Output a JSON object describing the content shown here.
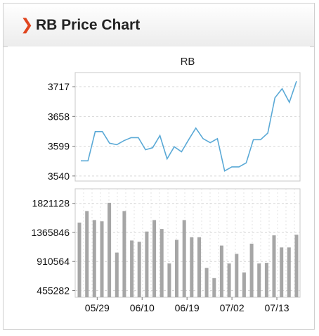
{
  "panel": {
    "title": "RB Price Chart",
    "chevron_color": "#e0451f"
  },
  "chart_data": [
    {
      "type": "line",
      "title": "RB",
      "xlabel": "",
      "ylabel": "",
      "yticks": [
        3540,
        3599,
        3658,
        3717
      ],
      "ylim": [
        3530,
        3745
      ],
      "grid": true,
      "color": "#5aa9d6",
      "values": [
        3570,
        3570,
        3628,
        3628,
        3605,
        3602,
        3610,
        3616,
        3616,
        3592,
        3596,
        3620,
        3574,
        3598,
        3588,
        3612,
        3635,
        3614,
        3606,
        3614,
        3550,
        3558,
        3558,
        3566,
        3612,
        3612,
        3625,
        3695,
        3713,
        3686,
        3728
      ]
    },
    {
      "type": "bar",
      "title": "",
      "xlabel": "",
      "ylabel": "",
      "yticks": [
        455282,
        910564,
        1365846,
        1821128
      ],
      "ylim": [
        350000,
        2050000
      ],
      "grid": true,
      "color": "#a6a6a6",
      "x_tick_labels": [
        "05/29",
        "06/10",
        "06/19",
        "07/02",
        "07/13"
      ],
      "x_tick_positions": [
        2,
        8,
        14,
        20,
        26
      ],
      "values": [
        1520000,
        1700000,
        1560000,
        1540000,
        1830000,
        1050000,
        1700000,
        1240000,
        1220000,
        1380000,
        1560000,
        1420000,
        880000,
        1250000,
        1560000,
        1290000,
        1290000,
        810000,
        650000,
        1160000,
        880000,
        1030000,
        740000,
        1190000,
        880000,
        890000,
        1320000,
        1130000,
        1130000,
        1330000
      ]
    }
  ]
}
